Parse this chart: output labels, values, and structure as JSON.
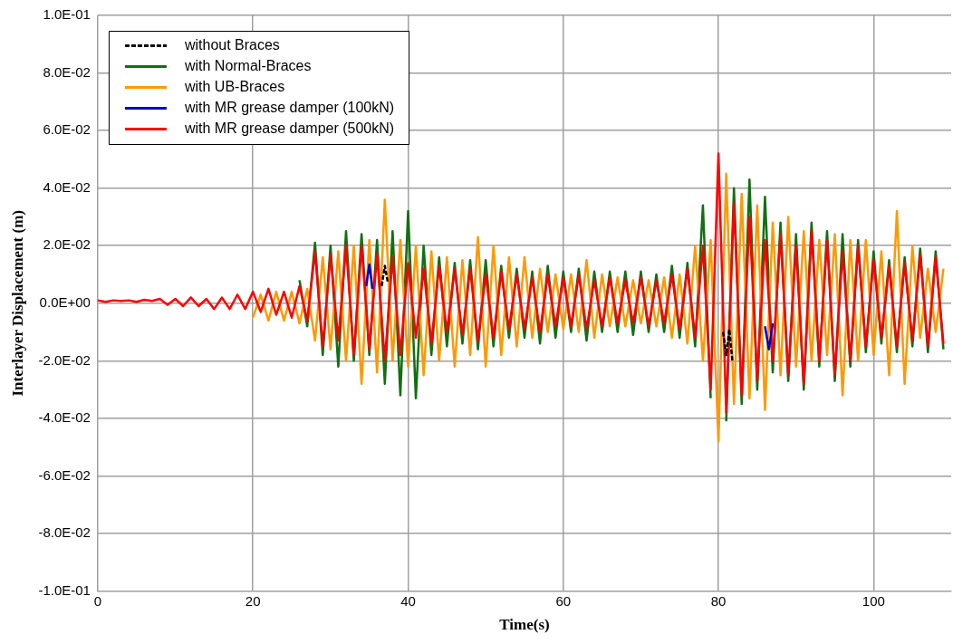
{
  "chart_data": {
    "type": "line",
    "xlabel": "Time(s)",
    "ylabel": "Interlayer Displacement (m)",
    "grid": true,
    "legend": "top left",
    "xlim": [
      0,
      110
    ],
    "xticks": [
      0,
      20,
      40,
      60,
      80,
      100
    ],
    "ylim": [
      -0.1,
      0.1
    ],
    "yticks": [
      {
        "value": 0.1,
        "label": "1.0E-01"
      },
      {
        "value": 0.08,
        "label": "8.0E-02"
      },
      {
        "value": 0.06,
        "label": "6.0E-02"
      },
      {
        "value": 0.04,
        "label": "4.0E-02"
      },
      {
        "value": 0.02,
        "label": "2.0E-02"
      },
      {
        "value": 0,
        "label": "0.0E+00"
      },
      {
        "value": -0.02,
        "label": "-2.0E-02"
      },
      {
        "value": -0.04,
        "label": "-4.0E-02"
      },
      {
        "value": -0.06,
        "label": "-6.0E-02"
      },
      {
        "value": -0.08,
        "label": "-8.0E-02"
      },
      {
        "value": -0.1,
        "label": "-1.0E-01"
      }
    ],
    "x": [
      0,
      1,
      2,
      3,
      4,
      5,
      6,
      7,
      8,
      9,
      10,
      11,
      12,
      13,
      14,
      15,
      16,
      17,
      18,
      19,
      20,
      21,
      22,
      23,
      24,
      25,
      26,
      27,
      28,
      29,
      30,
      31,
      32,
      33,
      34,
      35,
      36,
      37,
      38,
      39,
      40,
      41,
      42,
      43,
      44,
      45,
      46,
      47,
      48,
      49,
      50,
      51,
      52,
      53,
      54,
      55,
      56,
      57,
      58,
      59,
      60,
      61,
      62,
      63,
      64,
      65,
      66,
      67,
      68,
      69,
      70,
      71,
      72,
      73,
      74,
      75,
      76,
      77,
      78,
      79,
      80,
      81,
      82,
      83,
      84,
      85,
      86,
      87,
      88,
      89,
      90,
      91,
      92,
      93,
      94,
      95,
      96,
      97,
      98,
      99,
      100,
      101,
      102,
      103,
      104,
      105,
      106,
      107,
      108,
      109
    ],
    "series": [
      {
        "name": "without Braces",
        "color": "#000000",
        "line_style": "dashed",
        "x": [
          36.6,
          37,
          37.4,
          60,
          80.6,
          81,
          81.4,
          81.8
        ],
        "values": [
          0.006,
          0.013,
          0.007,
          null,
          -0.01,
          -0.018,
          -0.009,
          -0.02
        ]
      },
      {
        "name": "with Normal-Braces",
        "color": "#117011",
        "values": [
          null,
          null,
          null,
          null,
          null,
          null,
          null,
          null,
          null,
          null,
          null,
          null,
          null,
          null,
          null,
          null,
          null,
          null,
          null,
          null,
          null,
          null,
          null,
          null,
          null,
          null,
          0.008,
          -0.008,
          0.021,
          -0.018,
          0.02,
          -0.022,
          0.025,
          -0.02,
          0.024,
          -0.018,
          0.022,
          -0.028,
          0.025,
          -0.032,
          0.032,
          -0.033,
          0.02,
          -0.018,
          0.016,
          -0.015,
          0.014,
          -0.014,
          0.015,
          -0.016,
          0.015,
          -0.015,
          0.013,
          -0.012,
          0.012,
          -0.012,
          0.011,
          -0.014,
          0.013,
          -0.012,
          0.011,
          -0.01,
          0.012,
          -0.013,
          0.011,
          -0.01,
          0.011,
          -0.01,
          0.011,
          -0.011,
          0.011,
          -0.01,
          0.01,
          -0.01,
          0.013,
          -0.012,
          0.014,
          -0.015,
          0.034,
          -0.033,
          null,
          -0.041,
          0.04,
          -0.035,
          0.043,
          -0.03,
          0.037,
          -0.024,
          0.028,
          -0.027,
          0.024,
          -0.03,
          0.028,
          -0.022,
          0.025,
          -0.027,
          0.024,
          -0.022,
          0.022,
          -0.017,
          0.018,
          -0.014,
          0.015,
          -0.017,
          0.016,
          -0.015,
          0.019,
          -0.017,
          0.018,
          -0.016
        ]
      },
      {
        "name": "with UB-Braces",
        "color": "#ff9900",
        "values": [
          null,
          null,
          null,
          null,
          null,
          null,
          null,
          null,
          null,
          null,
          null,
          null,
          null,
          null,
          null,
          null,
          null,
          null,
          null,
          null,
          -0.005,
          0.003,
          -0.006,
          0.004,
          -0.006,
          0.004,
          -0.007,
          0.005,
          -0.013,
          0.016,
          -0.016,
          0.018,
          -0.02,
          0.02,
          -0.028,
          0.022,
          -0.024,
          0.036,
          -0.02,
          0.022,
          -0.022,
          0.02,
          -0.025,
          0.018,
          -0.02,
          0.016,
          -0.022,
          0.015,
          -0.018,
          0.023,
          -0.022,
          0.02,
          -0.018,
          0.016,
          -0.015,
          0.016,
          -0.012,
          0.012,
          -0.01,
          0.01,
          -0.009,
          0.01,
          -0.01,
          0.015,
          -0.012,
          0.01,
          -0.008,
          0.009,
          -0.008,
          0.008,
          -0.007,
          0.008,
          -0.008,
          0.009,
          -0.012,
          0.01,
          -0.014,
          0.02,
          -0.02,
          0.022,
          -0.048,
          0.045,
          -0.035,
          0.038,
          -0.033,
          0.034,
          -0.037,
          0.028,
          -0.025,
          0.03,
          -0.022,
          0.025,
          -0.02,
          0.022,
          -0.018,
          0.024,
          -0.032,
          0.022,
          -0.02,
          0.022,
          -0.018,
          0.018,
          -0.025,
          0.032,
          -0.028,
          0.02,
          -0.012,
          0.012,
          -0.01,
          0.012
        ]
      },
      {
        "name": "with MR grease damper (100kN)",
        "color": "#0000cc",
        "x": [
          34.6,
          35,
          35.4,
          60,
          86,
          86.5,
          87
        ],
        "values": [
          0.006,
          0.0135,
          0.005,
          null,
          -0.008,
          -0.016,
          -0.007
        ]
      },
      {
        "name": "with MR grease damper (500kN)",
        "color": "#ff0000",
        "values": [
          0.001,
          0.0005,
          0.001,
          0.0008,
          0.001,
          0.0005,
          0.0012,
          0.0008,
          0.0015,
          -0.0005,
          0.0015,
          -0.001,
          0.002,
          -0.001,
          0.0015,
          -0.002,
          0.002,
          -0.002,
          0.003,
          -0.002,
          0.004,
          -0.003,
          0.005,
          -0.004,
          0.004,
          -0.005,
          0.006,
          -0.006,
          0.018,
          -0.015,
          0.017,
          -0.013,
          0.02,
          -0.018,
          0.02,
          -0.016,
          0.017,
          -0.02,
          0.016,
          -0.018,
          0.014,
          -0.012,
          0.012,
          -0.014,
          0.013,
          -0.01,
          0.012,
          -0.011,
          0.012,
          -0.013,
          0.01,
          -0.012,
          0.011,
          -0.009,
          0.01,
          -0.009,
          0.009,
          -0.01,
          0.01,
          -0.008,
          0.009,
          -0.008,
          0.01,
          -0.009,
          0.008,
          -0.008,
          0.009,
          -0.007,
          0.008,
          -0.007,
          0.009,
          -0.008,
          0.008,
          -0.007,
          0.01,
          -0.009,
          0.012,
          -0.012,
          0.02,
          -0.03,
          0.052,
          -0.038,
          0.035,
          -0.032,
          0.03,
          -0.027,
          0.022,
          -0.02,
          0.024,
          -0.025,
          0.02,
          -0.028,
          0.025,
          -0.02,
          0.022,
          -0.025,
          0.018,
          -0.02,
          0.02,
          -0.015,
          0.015,
          -0.012,
          0.013,
          -0.015,
          0.014,
          -0.013,
          0.017,
          -0.015,
          0.016,
          -0.014
        ]
      }
    ]
  }
}
